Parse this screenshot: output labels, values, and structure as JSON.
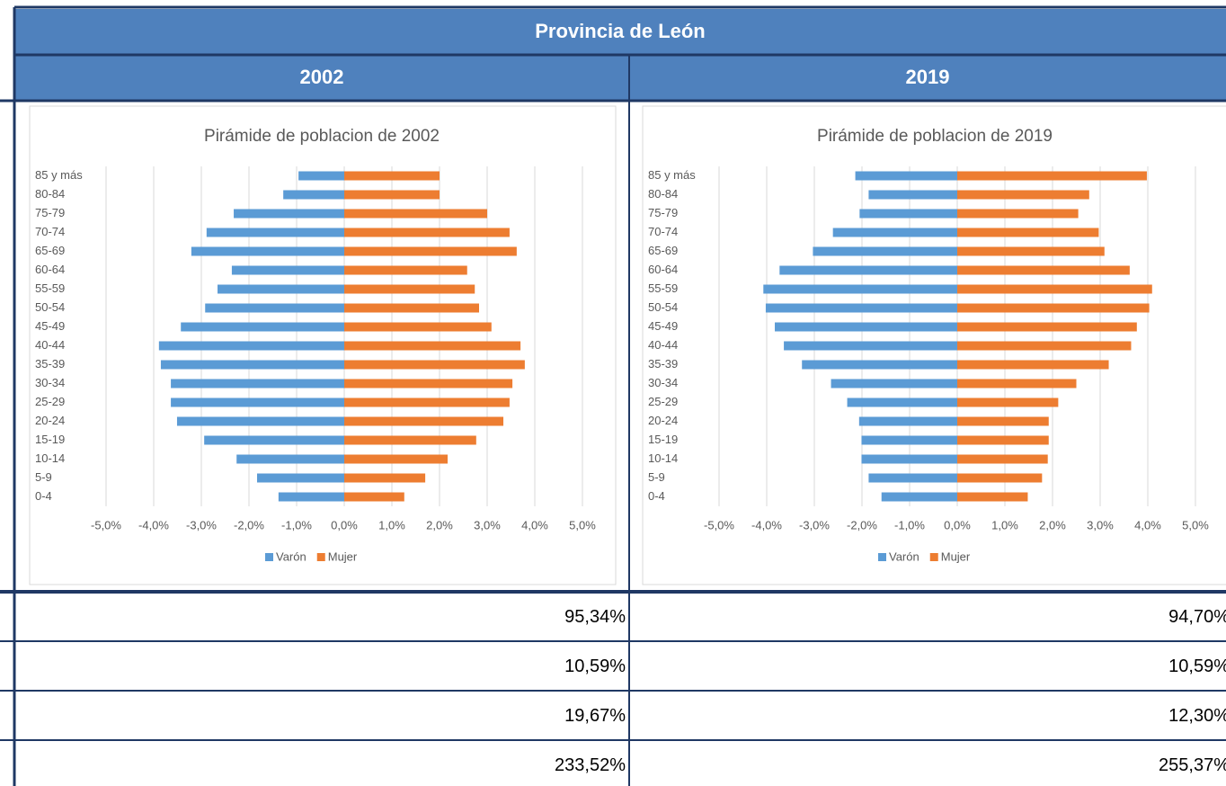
{
  "header": {
    "title": "Provincia de León"
  },
  "table": {
    "columns": [
      "2002",
      "2019"
    ],
    "rows": [
      [
        "95,34%",
        "94,70%"
      ],
      [
        "10,59%",
        "10,59%"
      ],
      [
        "19,67%",
        "12,30%"
      ],
      [
        "233,52%",
        "255,37%"
      ]
    ]
  },
  "chart_data": [
    {
      "type": "bar",
      "orientation": "horizontal",
      "title": "Pirámide de poblacion de 2002",
      "categories": [
        "85 y más",
        "80-84",
        "75-79",
        "70-74",
        "65-69",
        "60-64",
        "55-59",
        "50-54",
        "45-49",
        "40-44",
        "35-39",
        "30-34",
        "25-29",
        "20-24",
        "15-19",
        "10-14",
        "5-9",
        "0-4"
      ],
      "series": [
        {
          "name": "Varón",
          "color": "#5b9bd5",
          "values": [
            -0.96,
            -1.28,
            -2.32,
            -2.89,
            -3.21,
            -2.36,
            -2.66,
            -2.92,
            -3.43,
            -3.89,
            -3.85,
            -3.64,
            -3.64,
            -3.51,
            -2.94,
            -2.26,
            -1.83,
            -1.38
          ]
        },
        {
          "name": "Mujer",
          "color": "#ed7d31",
          "values": [
            2.0,
            2.0,
            3.0,
            3.47,
            3.62,
            2.58,
            2.74,
            2.83,
            3.09,
            3.7,
            3.79,
            3.53,
            3.47,
            3.34,
            2.77,
            2.17,
            1.7,
            1.26
          ]
        }
      ],
      "xlim": [
        -5,
        5
      ],
      "xticks": [
        {
          "value": -5,
          "label": "-5,0%"
        },
        {
          "value": -4,
          "label": "-4,0%"
        },
        {
          "value": -3,
          "label": "-3,0%"
        },
        {
          "value": -2,
          "label": "-2,0%"
        },
        {
          "value": -1,
          "label": "-1,0%"
        },
        {
          "value": 0,
          "label": "0,0%"
        },
        {
          "value": 1,
          "label": "1,0%"
        },
        {
          "value": 2,
          "label": "2,0%"
        },
        {
          "value": 3,
          "label": "3,0%"
        },
        {
          "value": 4,
          "label": "4,0%"
        },
        {
          "value": 5,
          "label": "5,0%"
        }
      ],
      "grid": true,
      "legend": "bottom"
    },
    {
      "type": "bar",
      "orientation": "horizontal",
      "title": "Pirámide de poblacion de 2019",
      "categories": [
        "85 y más",
        "80-84",
        "75-79",
        "70-74",
        "65-69",
        "60-64",
        "55-59",
        "50-54",
        "45-49",
        "40-44",
        "35-39",
        "30-34",
        "25-29",
        "20-24",
        "15-19",
        "10-14",
        "5-9",
        "0-4"
      ],
      "series": [
        {
          "name": "Varón",
          "color": "#5b9bd5",
          "values": [
            -2.14,
            -1.86,
            -2.05,
            -2.61,
            -3.03,
            -3.73,
            -4.07,
            -4.02,
            -3.83,
            -3.64,
            -3.26,
            -2.65,
            -2.31,
            -2.06,
            -2.01,
            -2.01,
            -1.86,
            -1.59
          ]
        },
        {
          "name": "Mujer",
          "color": "#ed7d31",
          "values": [
            3.98,
            2.77,
            2.54,
            2.97,
            3.09,
            3.62,
            4.09,
            4.03,
            3.77,
            3.65,
            3.18,
            2.5,
            2.12,
            1.92,
            1.92,
            1.9,
            1.78,
            1.48
          ]
        }
      ],
      "xlim": [
        -5,
        5
      ],
      "xticks": [
        {
          "value": -5,
          "label": "-5,0%"
        },
        {
          "value": -4,
          "label": "-4,0%"
        },
        {
          "value": -3,
          "label": "-3,0%"
        },
        {
          "value": -2,
          "label": "-2,0%"
        },
        {
          "value": -1,
          "label": "-1,0%"
        },
        {
          "value": 0,
          "label": "0,0%"
        },
        {
          "value": 1,
          "label": "1,0%"
        },
        {
          "value": 2,
          "label": "2,0%"
        },
        {
          "value": 3,
          "label": "3,0%"
        },
        {
          "value": 4,
          "label": "4,0%"
        },
        {
          "value": 5,
          "label": "5,0%"
        }
      ],
      "grid": true,
      "legend": "bottom"
    }
  ]
}
